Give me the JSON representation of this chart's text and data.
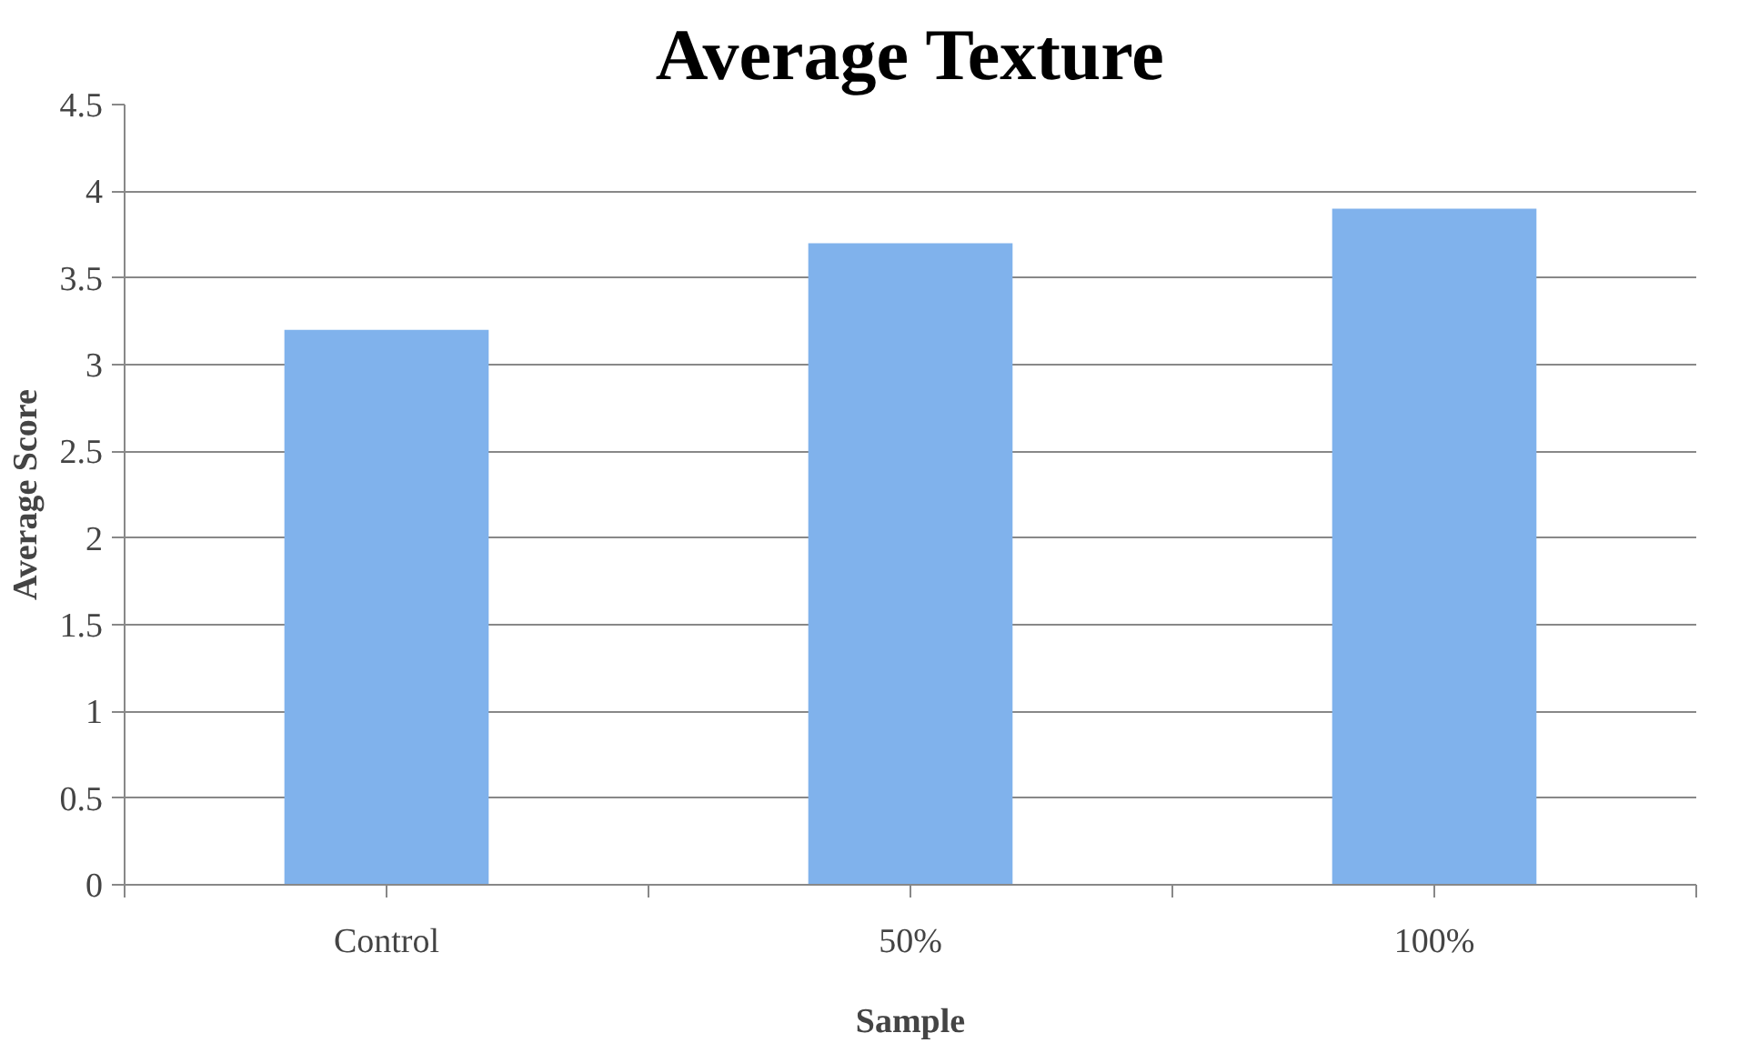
{
  "chart_data": {
    "type": "bar",
    "title": "Average Texture",
    "xlabel": "Sample",
    "ylabel": "Average Score",
    "categories": [
      "Control",
      "50%",
      "100%"
    ],
    "values": [
      3.2,
      3.7,
      3.9
    ],
    "color": "#80b2ec",
    "ylim": [
      0,
      4.5
    ],
    "yticks": [
      0,
      0.5,
      1,
      1.5,
      2,
      2.5,
      3,
      3.5,
      4,
      4.5
    ],
    "grid": "y"
  }
}
